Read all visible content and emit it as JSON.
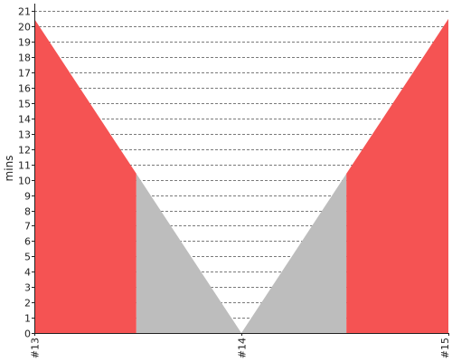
{
  "chart_data": {
    "type": "area",
    "x": [
      "#13",
      "#14",
      "#15"
    ],
    "ylabel": "mins",
    "yticks": [
      0,
      1,
      2,
      3,
      4,
      5,
      6,
      7,
      8,
      9,
      10,
      11,
      12,
      13,
      14,
      15,
      16,
      17,
      18,
      19,
      20,
      21
    ],
    "ylim": [
      0,
      21.5
    ],
    "grid": true,
    "series_values": [
      20.5,
      0,
      20.5
    ],
    "threshold": 10.4,
    "colors": {
      "above": "#f55353",
      "below": "#bdbdbd"
    }
  }
}
